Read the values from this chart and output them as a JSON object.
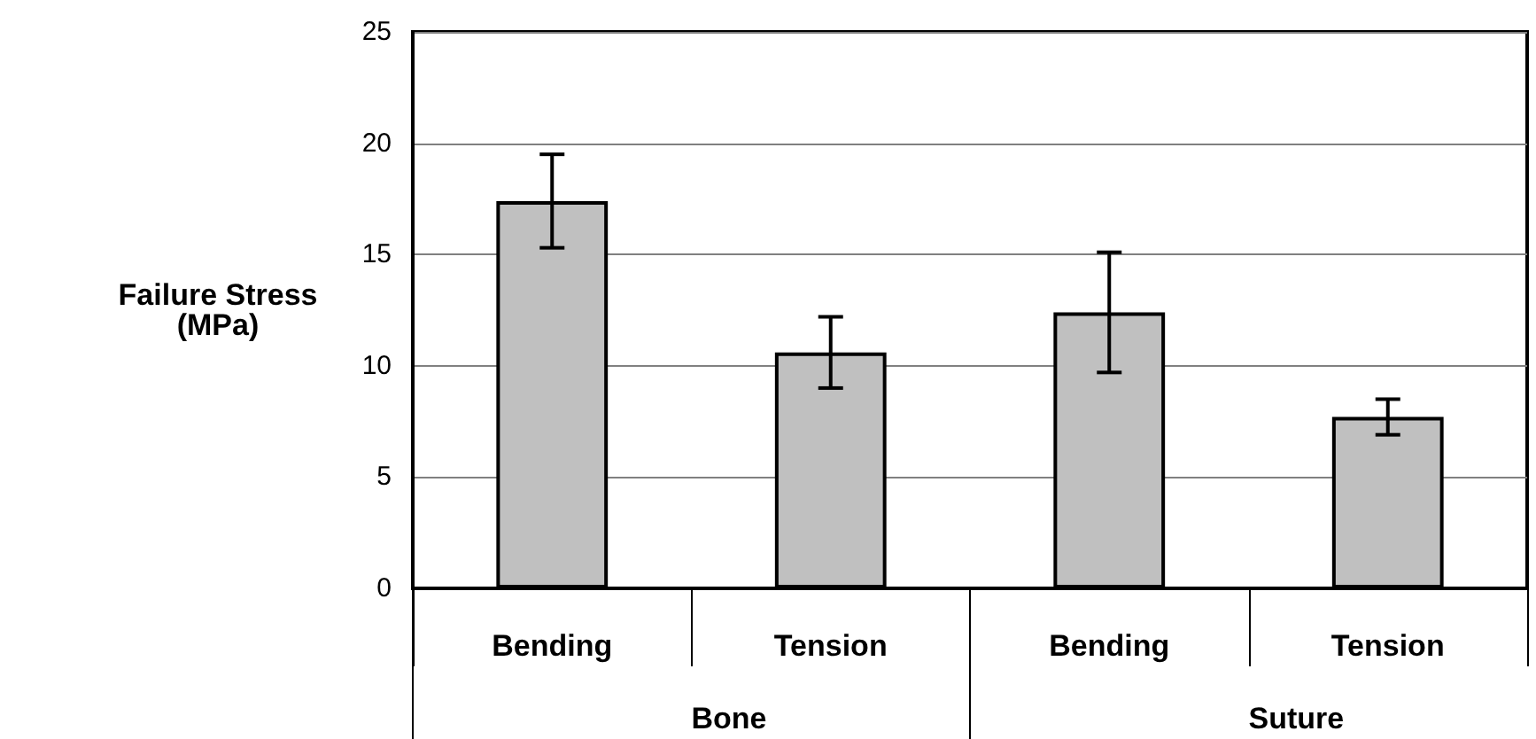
{
  "chart_data": {
    "type": "bar",
    "ylabel": "Failure Stress\n(MPa)",
    "categories": [
      "Bending",
      "Tension",
      "Bending",
      "Tension"
    ],
    "values": [
      17.4,
      10.6,
      12.4,
      7.7
    ],
    "errors": [
      2.1,
      1.6,
      2.7,
      0.8
    ],
    "color": "#c0c0c0",
    "ylim": [
      0,
      25
    ],
    "yticks": [
      0,
      5,
      10,
      15,
      20,
      25
    ],
    "grid": "y",
    "annotations": [
      "Bone",
      "Suture"
    ]
  }
}
